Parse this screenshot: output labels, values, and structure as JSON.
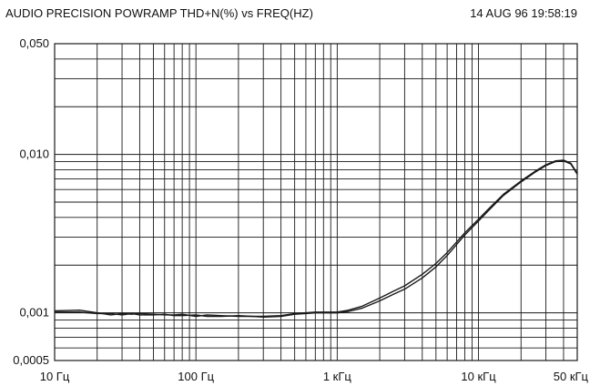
{
  "header": {
    "title": "AUDIO PRECISION POWRAMP THD+N(%) vs FREQ(HZ)",
    "timestamp": "14 AUG 96 19:58:19"
  },
  "chart_data": {
    "type": "line",
    "title": "AUDIO PRECISION POWRAMP THD+N(%) vs FREQ(HZ)",
    "xlabel": "",
    "ylabel": "",
    "x_scale": "log",
    "y_scale": "log",
    "xlim": [
      10,
      50000
    ],
    "ylim": [
      0.0005,
      0.05
    ],
    "grid": true,
    "line_color": "#1a1a1a",
    "x_ticks": [
      {
        "value": 10,
        "label": "10 Гц"
      },
      {
        "value": 100,
        "label": "100 Гц"
      },
      {
        "value": 1000,
        "label": "1 кГц"
      },
      {
        "value": 10000,
        "label": "10 кГц"
      },
      {
        "value": 50000,
        "label": "50 кГц"
      }
    ],
    "y_ticks": [
      {
        "value": 0.0005,
        "label": "0,0005"
      },
      {
        "value": 0.001,
        "label": "0,001"
      },
      {
        "value": 0.01,
        "label": "0,010"
      },
      {
        "value": 0.05,
        "label": "0,050"
      }
    ],
    "series": [
      {
        "x": [
          10,
          15,
          20,
          25,
          30,
          35,
          40,
          50,
          60,
          70,
          80,
          100,
          120,
          150,
          200,
          250,
          300,
          400,
          500,
          600,
          700,
          800,
          1000,
          1200,
          1500,
          2000,
          2500,
          3000,
          4000,
          5000,
          6000,
          7000,
          8000,
          10000,
          12000,
          15000,
          20000,
          25000,
          30000,
          35000,
          40000,
          45000,
          50000
        ],
        "y": [
          0.00103,
          0.00104,
          0.001,
          0.00097,
          0.00099,
          0.00098,
          0.00099,
          0.00098,
          0.00097,
          0.00097,
          0.00098,
          0.00095,
          0.00097,
          0.00096,
          0.00095,
          0.00095,
          0.00095,
          0.00096,
          0.00099,
          0.001,
          0.00101,
          0.00101,
          0.00101,
          0.00104,
          0.0011,
          0.00124,
          0.00137,
          0.00148,
          0.00175,
          0.00205,
          0.0024,
          0.0028,
          0.0032,
          0.0039,
          0.0046,
          0.0056,
          0.0068,
          0.0078,
          0.0086,
          0.0091,
          0.0092,
          0.0088,
          0.0076
        ]
      },
      {
        "x": [
          10,
          15,
          20,
          25,
          30,
          35,
          40,
          50,
          60,
          70,
          80,
          100,
          120,
          150,
          200,
          250,
          300,
          400,
          500,
          600,
          700,
          800,
          1000,
          1200,
          1500,
          2000,
          2500,
          3000,
          4000,
          5000,
          6000,
          7000,
          8000,
          10000,
          12000,
          15000,
          20000,
          25000,
          30000,
          35000,
          40000,
          45000,
          50000
        ],
        "y": [
          0.00101,
          0.00101,
          0.00099,
          0.00099,
          0.00097,
          0.00099,
          0.00097,
          0.00097,
          0.00098,
          0.00096,
          0.00096,
          0.00097,
          0.00095,
          0.00095,
          0.00096,
          0.00095,
          0.00094,
          0.00095,
          0.00098,
          0.00099,
          0.001,
          0.001,
          0.001,
          0.00102,
          0.00107,
          0.00119,
          0.00131,
          0.00141,
          0.00166,
          0.00195,
          0.0023,
          0.0027,
          0.0031,
          0.0038,
          0.0045,
          0.0055,
          0.0067,
          0.0077,
          0.0085,
          0.009,
          0.0091,
          0.0087,
          0.0075
        ]
      }
    ]
  }
}
